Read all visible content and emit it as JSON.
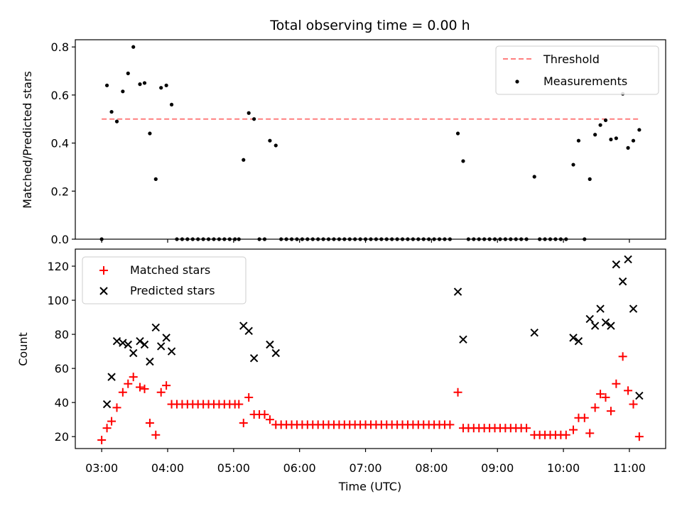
{
  "figure": {
    "title": "Total observing time = 0.00 h",
    "xlabel": "Time (UTC)",
    "x_tick_labels": [
      "03:00",
      "04:00",
      "05:00",
      "06:00",
      "07:00",
      "08:00",
      "09:00",
      "10:00",
      "11:00"
    ]
  },
  "chart_data": [
    {
      "type": "scatter",
      "ylabel": "Matched/Predicted stars",
      "x_unit": "hours UTC",
      "xlim": [
        2.6,
        11.55
      ],
      "ylim": [
        0,
        0.83
      ],
      "yticks": [
        0.0,
        0.2,
        0.4,
        0.6,
        0.8
      ],
      "y_tick_labels": [
        "0.0",
        "0.2",
        "0.4",
        "0.6",
        "0.8"
      ],
      "legend_position": "upper right",
      "threshold": {
        "name": "Threshold",
        "value": 0.5,
        "x_range": [
          3.0,
          11.15
        ],
        "color": "#ff7f7f",
        "style": "dashed"
      },
      "series": [
        {
          "name": "Measurements",
          "color": "#000000",
          "marker": "dot",
          "points": [
            [
              3.0,
              0.0
            ],
            [
              3.08,
              0.64
            ],
            [
              3.15,
              0.53
            ],
            [
              3.23,
              0.49
            ],
            [
              3.32,
              0.615
            ],
            [
              3.4,
              0.69
            ],
            [
              3.48,
              0.8
            ],
            [
              3.58,
              0.645
            ],
            [
              3.65,
              0.65
            ],
            [
              3.73,
              0.44
            ],
            [
              3.82,
              0.25
            ],
            [
              3.9,
              0.63
            ],
            [
              3.98,
              0.64
            ],
            [
              4.06,
              0.56
            ],
            [
              4.14,
              0.0
            ],
            [
              4.22,
              0.0
            ],
            [
              4.3,
              0.0
            ],
            [
              4.38,
              0.0
            ],
            [
              4.46,
              0.0
            ],
            [
              4.54,
              0.0
            ],
            [
              4.62,
              0.0
            ],
            [
              4.7,
              0.0
            ],
            [
              4.78,
              0.0
            ],
            [
              4.86,
              0.0
            ],
            [
              4.94,
              0.0
            ],
            [
              5.02,
              0.0
            ],
            [
              5.08,
              0.0
            ],
            [
              5.15,
              0.33
            ],
            [
              5.23,
              0.525
            ],
            [
              5.31,
              0.5
            ],
            [
              5.39,
              0.0
            ],
            [
              5.47,
              0.0
            ],
            [
              5.55,
              0.41
            ],
            [
              5.64,
              0.39
            ],
            [
              5.72,
              0.0
            ],
            [
              5.8,
              0.0
            ],
            [
              5.88,
              0.0
            ],
            [
              5.96,
              0.0
            ],
            [
              6.04,
              0.0
            ],
            [
              6.12,
              0.0
            ],
            [
              6.2,
              0.0
            ],
            [
              6.28,
              0.0
            ],
            [
              6.36,
              0.0
            ],
            [
              6.44,
              0.0
            ],
            [
              6.52,
              0.0
            ],
            [
              6.6,
              0.0
            ],
            [
              6.68,
              0.0
            ],
            [
              6.76,
              0.0
            ],
            [
              6.84,
              0.0
            ],
            [
              6.92,
              0.0
            ],
            [
              7.0,
              0.0
            ],
            [
              7.08,
              0.0
            ],
            [
              7.16,
              0.0
            ],
            [
              7.24,
              0.0
            ],
            [
              7.32,
              0.0
            ],
            [
              7.4,
              0.0
            ],
            [
              7.48,
              0.0
            ],
            [
              7.56,
              0.0
            ],
            [
              7.64,
              0.0
            ],
            [
              7.72,
              0.0
            ],
            [
              7.8,
              0.0
            ],
            [
              7.88,
              0.0
            ],
            [
              7.96,
              0.0
            ],
            [
              8.04,
              0.0
            ],
            [
              8.12,
              0.0
            ],
            [
              8.2,
              0.0
            ],
            [
              8.28,
              0.0
            ],
            [
              8.4,
              0.44
            ],
            [
              8.48,
              0.325
            ],
            [
              8.56,
              0.0
            ],
            [
              8.64,
              0.0
            ],
            [
              8.72,
              0.0
            ],
            [
              8.8,
              0.0
            ],
            [
              8.88,
              0.0
            ],
            [
              8.96,
              0.0
            ],
            [
              9.04,
              0.0
            ],
            [
              9.12,
              0.0
            ],
            [
              9.2,
              0.0
            ],
            [
              9.28,
              0.0
            ],
            [
              9.36,
              0.0
            ],
            [
              9.44,
              0.0
            ],
            [
              9.56,
              0.26
            ],
            [
              9.64,
              0.0
            ],
            [
              9.72,
              0.0
            ],
            [
              9.8,
              0.0
            ],
            [
              9.88,
              0.0
            ],
            [
              9.96,
              0.0
            ],
            [
              10.04,
              0.0
            ],
            [
              10.15,
              0.31
            ],
            [
              10.23,
              0.41
            ],
            [
              10.32,
              0.0
            ],
            [
              10.4,
              0.25
            ],
            [
              10.48,
              0.435
            ],
            [
              10.56,
              0.475
            ],
            [
              10.64,
              0.495
            ],
            [
              10.72,
              0.415
            ],
            [
              10.8,
              0.42
            ],
            [
              10.9,
              0.605
            ],
            [
              10.98,
              0.38
            ],
            [
              11.06,
              0.41
            ],
            [
              11.15,
              0.455
            ]
          ]
        }
      ]
    },
    {
      "type": "scatter",
      "ylabel": "Count",
      "x_unit": "hours UTC",
      "xlim": [
        2.6,
        11.55
      ],
      "ylim": [
        13,
        130
      ],
      "yticks": [
        20,
        40,
        60,
        80,
        100,
        120
      ],
      "y_tick_labels": [
        "20",
        "40",
        "60",
        "80",
        "100",
        "120"
      ],
      "legend_position": "upper left",
      "series": [
        {
          "name": "Matched stars",
          "color": "#ff0000",
          "marker": "plus",
          "points": [
            [
              3.0,
              18
            ],
            [
              3.08,
              25
            ],
            [
              3.15,
              29
            ],
            [
              3.23,
              37
            ],
            [
              3.32,
              46
            ],
            [
              3.4,
              51
            ],
            [
              3.48,
              55
            ],
            [
              3.58,
              49
            ],
            [
              3.65,
              48
            ],
            [
              3.73,
              28
            ],
            [
              3.82,
              21
            ],
            [
              3.9,
              46
            ],
            [
              3.98,
              50
            ],
            [
              4.06,
              39
            ],
            [
              4.14,
              39
            ],
            [
              4.22,
              39
            ],
            [
              4.3,
              39
            ],
            [
              4.38,
              39
            ],
            [
              4.46,
              39
            ],
            [
              4.54,
              39
            ],
            [
              4.62,
              39
            ],
            [
              4.7,
              39
            ],
            [
              4.78,
              39
            ],
            [
              4.86,
              39
            ],
            [
              4.94,
              39
            ],
            [
              5.02,
              39
            ],
            [
              5.08,
              39
            ],
            [
              5.15,
              28
            ],
            [
              5.23,
              43
            ],
            [
              5.31,
              33
            ],
            [
              5.39,
              33
            ],
            [
              5.47,
              33
            ],
            [
              5.55,
              30
            ],
            [
              5.64,
              27
            ],
            [
              5.72,
              27
            ],
            [
              5.8,
              27
            ],
            [
              5.88,
              27
            ],
            [
              5.96,
              27
            ],
            [
              6.04,
              27
            ],
            [
              6.12,
              27
            ],
            [
              6.2,
              27
            ],
            [
              6.28,
              27
            ],
            [
              6.36,
              27
            ],
            [
              6.44,
              27
            ],
            [
              6.52,
              27
            ],
            [
              6.6,
              27
            ],
            [
              6.68,
              27
            ],
            [
              6.76,
              27
            ],
            [
              6.84,
              27
            ],
            [
              6.92,
              27
            ],
            [
              7.0,
              27
            ],
            [
              7.08,
              27
            ],
            [
              7.16,
              27
            ],
            [
              7.24,
              27
            ],
            [
              7.32,
              27
            ],
            [
              7.4,
              27
            ],
            [
              7.48,
              27
            ],
            [
              7.56,
              27
            ],
            [
              7.64,
              27
            ],
            [
              7.72,
              27
            ],
            [
              7.8,
              27
            ],
            [
              7.88,
              27
            ],
            [
              7.96,
              27
            ],
            [
              8.04,
              27
            ],
            [
              8.12,
              27
            ],
            [
              8.2,
              27
            ],
            [
              8.28,
              27
            ],
            [
              8.4,
              46
            ],
            [
              8.48,
              25
            ],
            [
              8.56,
              25
            ],
            [
              8.64,
              25
            ],
            [
              8.72,
              25
            ],
            [
              8.8,
              25
            ],
            [
              8.88,
              25
            ],
            [
              8.96,
              25
            ],
            [
              9.04,
              25
            ],
            [
              9.12,
              25
            ],
            [
              9.2,
              25
            ],
            [
              9.28,
              25
            ],
            [
              9.36,
              25
            ],
            [
              9.44,
              25
            ],
            [
              9.56,
              21
            ],
            [
              9.64,
              21
            ],
            [
              9.72,
              21
            ],
            [
              9.8,
              21
            ],
            [
              9.88,
              21
            ],
            [
              9.96,
              21
            ],
            [
              10.04,
              21
            ],
            [
              10.15,
              24
            ],
            [
              10.23,
              31
            ],
            [
              10.32,
              31
            ],
            [
              10.4,
              22
            ],
            [
              10.48,
              37
            ],
            [
              10.56,
              45
            ],
            [
              10.64,
              43
            ],
            [
              10.72,
              35
            ],
            [
              10.8,
              51
            ],
            [
              10.9,
              67
            ],
            [
              10.98,
              47
            ],
            [
              11.06,
              39
            ],
            [
              11.15,
              20
            ]
          ]
        },
        {
          "name": "Predicted stars",
          "color": "#000000",
          "marker": "x",
          "points": [
            [
              3.08,
              39
            ],
            [
              3.15,
              55
            ],
            [
              3.23,
              76
            ],
            [
              3.32,
              75
            ],
            [
              3.4,
              74
            ],
            [
              3.48,
              69
            ],
            [
              3.58,
              76
            ],
            [
              3.65,
              74
            ],
            [
              3.73,
              64
            ],
            [
              3.82,
              84
            ],
            [
              3.9,
              73
            ],
            [
              3.98,
              78
            ],
            [
              4.06,
              70
            ],
            [
              5.15,
              85
            ],
            [
              5.23,
              82
            ],
            [
              5.31,
              66
            ],
            [
              5.55,
              74
            ],
            [
              5.64,
              69
            ],
            [
              8.4,
              105
            ],
            [
              8.48,
              77
            ],
            [
              9.56,
              81
            ],
            [
              10.15,
              78
            ],
            [
              10.23,
              76
            ],
            [
              10.4,
              89
            ],
            [
              10.48,
              85
            ],
            [
              10.56,
              95
            ],
            [
              10.64,
              87
            ],
            [
              10.72,
              85
            ],
            [
              10.8,
              121
            ],
            [
              10.9,
              111
            ],
            [
              10.98,
              124
            ],
            [
              11.06,
              95
            ],
            [
              11.15,
              44
            ]
          ]
        }
      ]
    }
  ]
}
